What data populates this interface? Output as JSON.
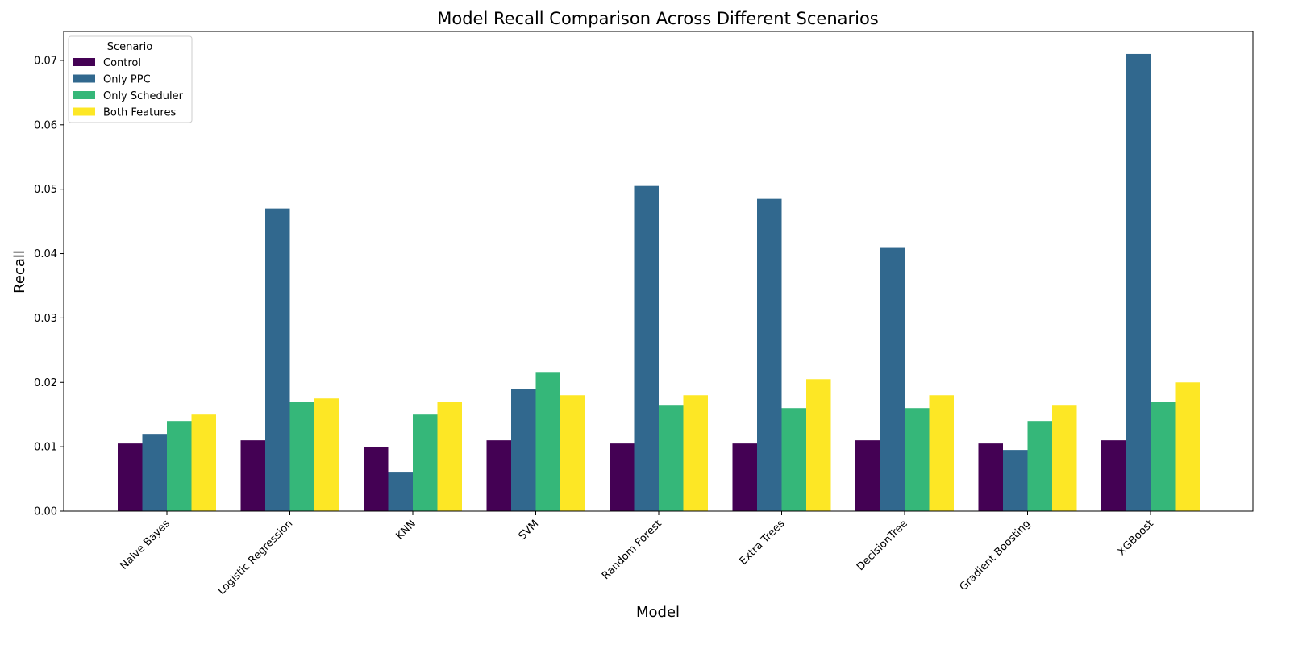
{
  "chart_data": {
    "type": "bar",
    "title": "Model Recall Comparison Across Different Scenarios",
    "xlabel": "Model",
    "ylabel": "Recall",
    "ylim": [
      0,
      0.0745
    ],
    "yticks": [
      "0.00",
      "0.01",
      "0.02",
      "0.03",
      "0.04",
      "0.05",
      "0.06",
      "0.07"
    ],
    "grid": false,
    "legend": {
      "title": "Scenario",
      "placement": "top-left"
    },
    "categories": [
      "Naive Bayes",
      "Logistic Regression",
      "KNN",
      "SVM",
      "Random Forest",
      "Extra Trees",
      "DecisionTree",
      "Gradient Boosting",
      "XGBoost"
    ],
    "series": [
      {
        "name": "Control",
        "color": "#440154",
        "values": [
          0.0105,
          0.011,
          0.01,
          0.011,
          0.0105,
          0.0105,
          0.011,
          0.0105,
          0.011
        ]
      },
      {
        "name": "Only PPC",
        "color": "#31688e",
        "values": [
          0.012,
          0.047,
          0.006,
          0.019,
          0.0505,
          0.0485,
          0.041,
          0.0095,
          0.071
        ]
      },
      {
        "name": "Only Scheduler",
        "color": "#35b779",
        "values": [
          0.014,
          0.017,
          0.015,
          0.0215,
          0.0165,
          0.016,
          0.016,
          0.014,
          0.017
        ]
      },
      {
        "name": "Both Features",
        "color": "#fde725",
        "values": [
          0.015,
          0.0175,
          0.017,
          0.018,
          0.018,
          0.0205,
          0.018,
          0.0165,
          0.02
        ]
      }
    ]
  }
}
